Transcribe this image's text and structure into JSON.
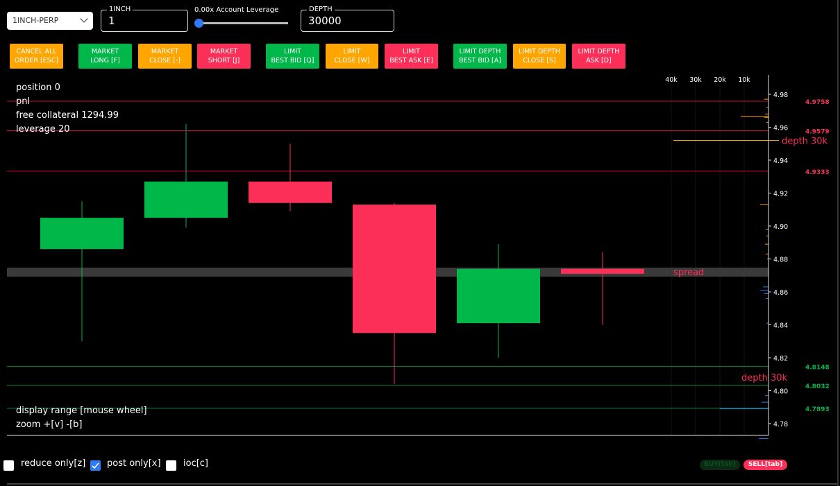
{
  "symbol_select": {
    "value": "1INCH-PERP"
  },
  "size_field": {
    "legend": "1INCH",
    "value": "1"
  },
  "leverage": {
    "label": "0.00x Account Leverage",
    "level": 0
  },
  "depth_field": {
    "legend": "DEPTH",
    "value": "30000"
  },
  "buttons": [
    {
      "label": "CANCEL ALL\nORDER [ESC]",
      "color": "orange"
    },
    {
      "label": "MARKET\nLONG [F]",
      "color": "green"
    },
    {
      "label": "MARKET\nCLOSE [-]",
      "color": "orange"
    },
    {
      "label": "MARKET\nSHORT [J]",
      "color": "red"
    },
    {
      "label": "LIMIT\nBEST BID [Q]",
      "color": "green"
    },
    {
      "label": "LIMIT\nCLOSE [W]",
      "color": "orange"
    },
    {
      "label": "LIMIT\nBEST ASK [E]",
      "color": "red"
    },
    {
      "label": "LIMIT DEPTH\nBEST BID [A]",
      "color": "green"
    },
    {
      "label": "LIMIT DEPTH\nCLOSE [S]",
      "color": "orange"
    },
    {
      "label": "LIMIT DEPTH\nASK [D]",
      "color": "red"
    }
  ],
  "info": {
    "position": "position 0",
    "pnl": "pnl",
    "collateral": "free collateral 1294.99",
    "leverage": "leverage 20",
    "display_range": "display range [mouse wheel]",
    "zoom": "zoom +[v] -[b]"
  },
  "colors": {
    "up": "#00b74a",
    "down": "#fc2f58",
    "orange": "#ffa500",
    "blue": "#2f7bf5"
  },
  "chart_data": {
    "type": "candlestick",
    "ylim": [
      4.77,
      4.99
    ],
    "y_ticks": [
      "4.98",
      "4.96",
      "4.94",
      "4.92",
      "4.90",
      "4.88",
      "4.86",
      "4.84",
      "4.82",
      "4.80",
      "4.78"
    ],
    "depth_ticks": [
      "40k",
      "30k",
      "20k",
      "10k"
    ],
    "candles": [
      {
        "open": 4.886,
        "close": 4.905,
        "high": 4.915,
        "low": 4.83
      },
      {
        "open": 4.905,
        "close": 4.927,
        "high": 4.962,
        "low": 4.899
      },
      {
        "open": 4.927,
        "close": 4.914,
        "high": 4.95,
        "low": 4.909
      },
      {
        "open": 4.913,
        "close": 4.835,
        "high": 4.914,
        "low": 4.804
      },
      {
        "open": 4.841,
        "close": 4.874,
        "high": 4.889,
        "low": 4.82
      },
      {
        "open": 4.874,
        "close": 4.871,
        "high": 4.884,
        "low": 4.84
      }
    ],
    "ask_levels": [
      {
        "price": 4.9758,
        "label": "4.9758"
      },
      {
        "price": 4.9579,
        "label": "4.9579"
      },
      {
        "price": 4.9333,
        "label": "4.9333"
      }
    ],
    "bid_levels": [
      {
        "price": 4.8148,
        "label": "4.8148"
      },
      {
        "price": 4.8032,
        "label": "4.8032"
      },
      {
        "price": 4.7893,
        "label": "4.7893"
      }
    ],
    "spread": {
      "low": 4.869,
      "high": 4.874,
      "label": "spread"
    },
    "depth_ask": {
      "price": 4.952,
      "label": "depth 30k"
    },
    "depth_bid": {
      "price": 4.8032,
      "label": "depth 30k"
    }
  },
  "checkboxes": [
    {
      "label": "reduce only[z]",
      "checked": false
    },
    {
      "label": "post only[x]",
      "checked": true
    },
    {
      "label": "ioc[c]",
      "checked": false
    }
  ],
  "side": {
    "buy": "BUY[tab]",
    "sell": "SELL[tab]"
  }
}
